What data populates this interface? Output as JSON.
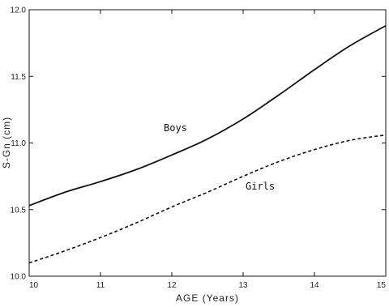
{
  "chart_data": {
    "type": "line",
    "xlabel": "AGE (Years)",
    "ylabel": "S-Gn (cm)",
    "xlim": [
      10,
      15
    ],
    "ylim": [
      10.0,
      12.0
    ],
    "x_ticks": [
      "10",
      "11",
      "12",
      "13",
      "14",
      "15"
    ],
    "y_ticks": [
      "10.0",
      "10.5",
      "11.0",
      "11.5",
      "12.0"
    ],
    "grid": false,
    "legend": "none",
    "x": [
      10,
      10.5,
      11,
      11.5,
      12,
      12.5,
      13,
      13.5,
      14,
      14.5,
      15
    ],
    "series": [
      {
        "name": "Boys",
        "line_style": "solid",
        "color": "#111111",
        "values": [
          10.53,
          10.63,
          10.71,
          10.8,
          10.91,
          11.03,
          11.18,
          11.36,
          11.55,
          11.73,
          11.88
        ]
      },
      {
        "name": "Girls",
        "line_style": "dashed",
        "color": "#111111",
        "values": [
          10.1,
          10.19,
          10.29,
          10.4,
          10.52,
          10.63,
          10.75,
          10.86,
          10.95,
          11.02,
          11.06
        ]
      }
    ]
  }
}
